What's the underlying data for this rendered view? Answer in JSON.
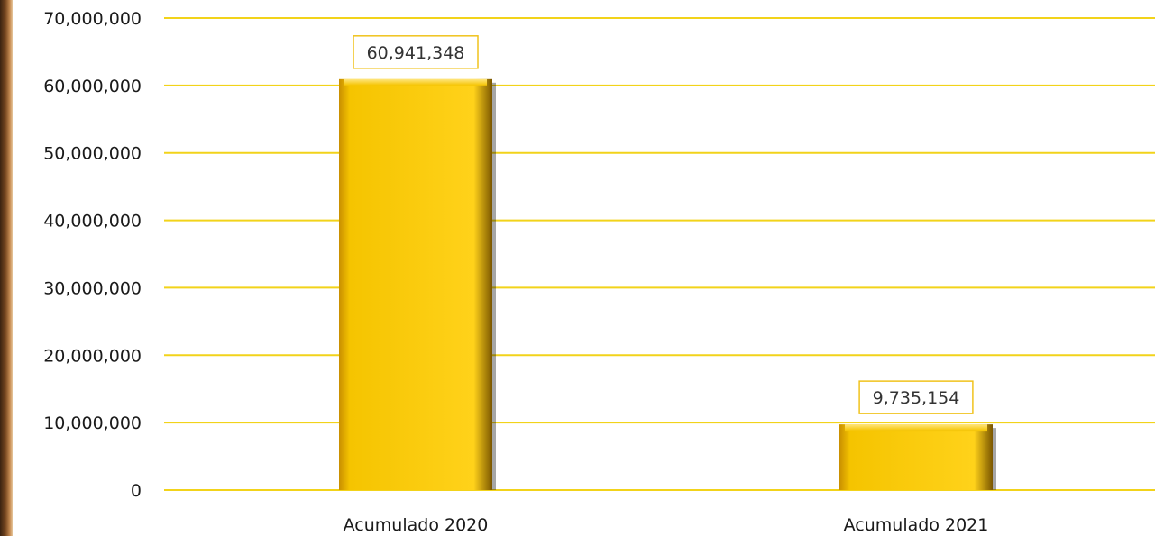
{
  "chart_data": {
    "type": "bar",
    "categories": [
      "Acumulado 2020",
      "Acumulado 2021"
    ],
    "values": [
      60941348,
      9735154
    ],
    "data_labels": [
      "60,941,348",
      "9,735,154"
    ],
    "ylim": [
      0,
      70000000
    ],
    "yticks": [
      0,
      10000000,
      20000000,
      30000000,
      40000000,
      50000000,
      60000000,
      70000000
    ],
    "ytick_labels": [
      "0",
      "10,000,000",
      "20,000,000",
      "30,000,000",
      "40,000,000",
      "50,000,000",
      "60,000,000",
      "70,000,000"
    ],
    "grid": true,
    "legend": "none"
  },
  "colors": {
    "bar": "#f5c400",
    "grid": "#f2d31a",
    "label_border": "#f0c21c"
  }
}
